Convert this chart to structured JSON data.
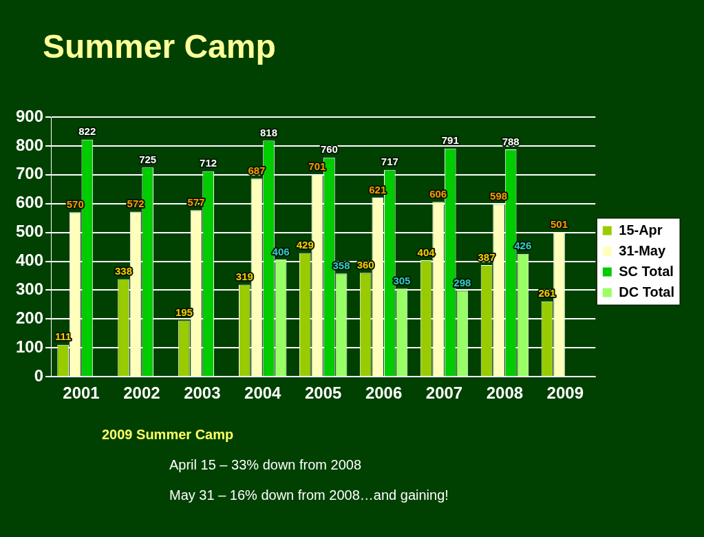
{
  "chart_data": {
    "type": "bar",
    "title": "Summer Camp",
    "categories": [
      "2001",
      "2002",
      "2003",
      "2004",
      "2005",
      "2006",
      "2007",
      "2008",
      "2009"
    ],
    "series": [
      {
        "name": "15-Apr",
        "color": "#99cc00",
        "values": [
          111,
          338,
          195,
          319,
          429,
          360,
          404,
          387,
          261
        ]
      },
      {
        "name": "31-May",
        "color": "#ffffbb",
        "values": [
          570,
          572,
          577,
          687,
          701,
          621,
          606,
          598,
          501
        ]
      },
      {
        "name": "SC Total",
        "color": "#00cc00",
        "values": [
          822,
          725,
          712,
          818,
          760,
          717,
          791,
          788,
          null
        ]
      },
      {
        "name": "DC Total",
        "color": "#99ff66",
        "values": [
          null,
          null,
          null,
          406,
          358,
          305,
          298,
          426,
          null
        ]
      }
    ],
    "ylim": [
      0,
      900
    ],
    "yticks": [
      0,
      100,
      200,
      300,
      400,
      500,
      600,
      700,
      800,
      900
    ],
    "grid": "y",
    "legend": "right",
    "data_labels": true,
    "annotations": [
      "2009 Summer Camp",
      "April 15 – 33% down from 2008",
      "May 31 – 16% down from 2008…and gaining!"
    ]
  }
}
